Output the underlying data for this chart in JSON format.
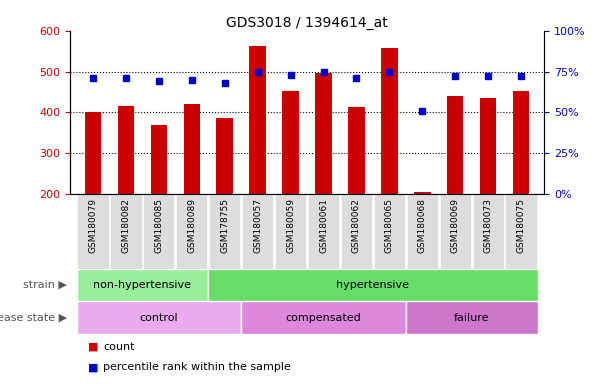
{
  "title": "GDS3018 / 1394614_at",
  "samples": [
    "GSM180079",
    "GSM180082",
    "GSM180085",
    "GSM180089",
    "GSM178755",
    "GSM180057",
    "GSM180059",
    "GSM180061",
    "GSM180062",
    "GSM180065",
    "GSM180068",
    "GSM180069",
    "GSM180073",
    "GSM180075"
  ],
  "counts": [
    400,
    415,
    370,
    420,
    385,
    562,
    453,
    497,
    413,
    558,
    205,
    440,
    435,
    453
  ],
  "percentiles": [
    71,
    71,
    69,
    70,
    68,
    75,
    73,
    75,
    71,
    75,
    51,
    72,
    72,
    72
  ],
  "ylim_left": [
    200,
    600
  ],
  "ylim_right": [
    0,
    100
  ],
  "yticks_left": [
    200,
    300,
    400,
    500,
    600
  ],
  "yticks_right": [
    0,
    25,
    50,
    75,
    100
  ],
  "bar_color": "#CC0000",
  "dot_color": "#0000CC",
  "strain_groups": [
    {
      "label": "non-hypertensive",
      "start": 0,
      "end": 4,
      "color": "#99EE99"
    },
    {
      "label": "hypertensive",
      "start": 4,
      "end": 14,
      "color": "#66DD66"
    }
  ],
  "disease_groups": [
    {
      "label": "control",
      "start": 0,
      "end": 5,
      "color": "#EAAAEE"
    },
    {
      "label": "compensated",
      "start": 5,
      "end": 10,
      "color": "#DD88DD"
    },
    {
      "label": "failure",
      "start": 10,
      "end": 14,
      "color": "#CC77CC"
    }
  ],
  "legend_count_label": "count",
  "legend_pct_label": "percentile rank within the sample",
  "strain_label": "strain",
  "disease_label": "disease state",
  "tick_color_left": "#CC0000",
  "tick_color_right": "#0000CC",
  "xtick_bg": "#DDDDDD"
}
